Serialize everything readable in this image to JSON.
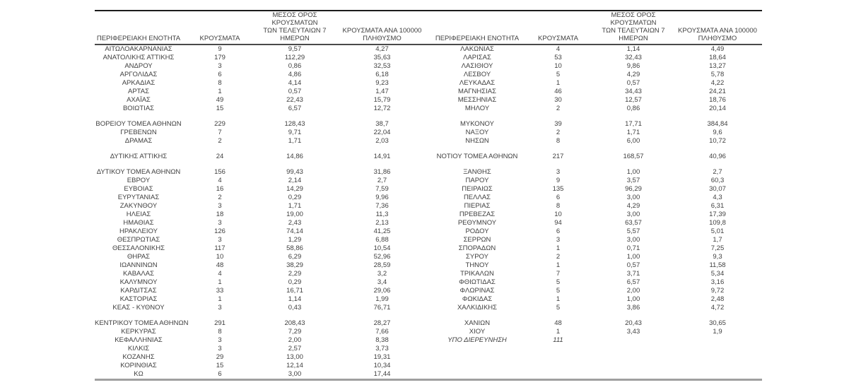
{
  "table": {
    "headers": {
      "region": "ΠΕΡΙΦΕΡΕΙΑΚΗ ΕΝΟΤΗΤΑ",
      "cases": "ΚΡΟΥΣΜΑΤΑ",
      "avg7": "ΜΕΣΟΣ ΟΡΟΣ ΚΡΟΥΣΜΑΤΩΝ\nΤΩΝ ΤΕΛΕΥΤΑΙΩΝ 7\nΗΜΕΡΩΝ",
      "per100k": "ΚΡΟΥΣΜΑΤΑ ΑΝΑ 100000\nΠΛΗΘΥΣΜΟ"
    },
    "colors": {
      "top_rule": "#1c1c1c",
      "header_rule": "#4a4a4a",
      "bottom_rule": "#a0a0a0",
      "text": "#3f3f3f"
    },
    "rows": [
      {
        "l": [
          "ΑΙΤΩΛΟΑΚΑΡΝΑΝΙΑΣ",
          "9",
          "9,57",
          "4,27"
        ],
        "r": [
          "ΛΑΚΩΝΙΑΣ",
          "4",
          "1,14",
          "4,49"
        ]
      },
      {
        "l": [
          "ΑΝΑΤΟΛΙΚΗΣ ΑΤΤΙΚΗΣ",
          "179",
          "112,29",
          "35,63"
        ],
        "r": [
          "ΛΑΡΙΣΑΣ",
          "53",
          "32,43",
          "18,64"
        ]
      },
      {
        "l": [
          "ΑΝΔΡΟΥ",
          "3",
          "0,86",
          "32,53"
        ],
        "r": [
          "ΛΑΣΙΘΙΟΥ",
          "10",
          "9,86",
          "13,27"
        ]
      },
      {
        "l": [
          "ΑΡΓΟΛΙΔΑΣ",
          "6",
          "4,86",
          "6,18"
        ],
        "r": [
          "ΛΕΣΒΟΥ",
          "5",
          "4,29",
          "5,78"
        ]
      },
      {
        "l": [
          "ΑΡΚΑΔΙΑΣ",
          "8",
          "4,14",
          "9,23"
        ],
        "r": [
          "ΛΕΥΚΑΔΑΣ",
          "1",
          "0,57",
          "4,22"
        ]
      },
      {
        "l": [
          "ΑΡΤΑΣ",
          "1",
          "0,57",
          "1,47"
        ],
        "r": [
          "ΜΑΓΝΗΣΙΑΣ",
          "46",
          "34,43",
          "24,21"
        ]
      },
      {
        "l": [
          "ΑΧΑΪΑΣ",
          "49",
          "22,43",
          "15,79"
        ],
        "r": [
          "ΜΕΣΣΗΝΙΑΣ",
          "30",
          "12,57",
          "18,76"
        ]
      },
      {
        "l": [
          "ΒΟΙΩΤΙΑΣ",
          "15",
          "6,57",
          "12,72"
        ],
        "r": [
          "ΜΗΛΟΥ",
          "2",
          "0,86",
          "20,14"
        ]
      },
      {
        "spacer": true
      },
      {
        "l": [
          "ΒΟΡΕΙΟΥ ΤΟΜΕΑ ΑΘΗΝΩΝ",
          "229",
          "128,43",
          "38,7"
        ],
        "r": [
          "ΜΥΚΟΝΟΥ",
          "39",
          "17,71",
          "384,84"
        ]
      },
      {
        "l": [
          "ΓΡΕΒΕΝΩΝ",
          "7",
          "9,71",
          "22,04"
        ],
        "r": [
          "ΝΑΞΟΥ",
          "2",
          "1,71",
          "9,6"
        ]
      },
      {
        "l": [
          "ΔΡΑΜΑΣ",
          "2",
          "1,71",
          "2,03"
        ],
        "r": [
          "ΝΗΣΩΝ",
          "8",
          "6,00",
          "10,72"
        ]
      },
      {
        "spacer": true
      },
      {
        "l": [
          "ΔΥΤΙΚΗΣ ΑΤΤΙΚΗΣ",
          "24",
          "14,86",
          "14,91"
        ],
        "r": [
          "ΝΟΤΙΟΥ ΤΟΜΕΑ ΑΘΗΝΩΝ",
          "217",
          "168,57",
          "40,96"
        ]
      },
      {
        "spacer": true
      },
      {
        "l": [
          "ΔΥΤΙΚΟΥ ΤΟΜΕΑ ΑΘΗΝΩΝ",
          "156",
          "99,43",
          "31,86"
        ],
        "r": [
          "ΞΑΝΘΗΣ",
          "3",
          "1,00",
          "2,7"
        ]
      },
      {
        "l": [
          "ΕΒΡΟΥ",
          "4",
          "2,14",
          "2,7"
        ],
        "r": [
          "ΠΑΡΟΥ",
          "9",
          "3,57",
          "60,3"
        ]
      },
      {
        "l": [
          "ΕΥΒΟΙΑΣ",
          "16",
          "14,29",
          "7,59"
        ],
        "r": [
          "ΠΕΙΡΑΙΩΣ",
          "135",
          "96,29",
          "30,07"
        ]
      },
      {
        "l": [
          "ΕΥΡΥΤΑΝΙΑΣ",
          "2",
          "0,29",
          "9,96"
        ],
        "r": [
          "ΠΕΛΛΑΣ",
          "6",
          "3,00",
          "4,3"
        ]
      },
      {
        "l": [
          "ΖΑΚΥΝΘΟΥ",
          "3",
          "1,71",
          "7,36"
        ],
        "r": [
          "ΠΙΕΡΙΑΣ",
          "8",
          "4,29",
          "6,31"
        ]
      },
      {
        "l": [
          "ΗΛΕΙΑΣ",
          "18",
          "19,00",
          "11,3"
        ],
        "r": [
          "ΠΡΕΒΕΖΑΣ",
          "10",
          "3,00",
          "17,39"
        ]
      },
      {
        "l": [
          "ΗΜΑΘΙΑΣ",
          "3",
          "2,43",
          "2,13"
        ],
        "r": [
          "ΡΕΘΥΜΝΟΥ",
          "94",
          "63,57",
          "109,8"
        ]
      },
      {
        "l": [
          "ΗΡΑΚΛΕΙΟΥ",
          "126",
          "74,14",
          "41,25"
        ],
        "r": [
          "ΡΟΔΟΥ",
          "6",
          "5,57",
          "5,01"
        ]
      },
      {
        "l": [
          "ΘΕΣΠΡΩΤΙΑΣ",
          "3",
          "1,29",
          "6,88"
        ],
        "r": [
          "ΣΕΡΡΩΝ",
          "3",
          "3,00",
          "1,7"
        ]
      },
      {
        "l": [
          "ΘΕΣΣΑΛΟΝΙΚΗΣ",
          "117",
          "58,86",
          "10,54"
        ],
        "r": [
          "ΣΠΟΡΑΔΩΝ",
          "1",
          "0,71",
          "7,25"
        ]
      },
      {
        "l": [
          "ΘΗΡΑΣ",
          "10",
          "6,29",
          "52,96"
        ],
        "r": [
          "ΣΥΡΟΥ",
          "2",
          "1,00",
          "9,3"
        ]
      },
      {
        "l": [
          "ΙΩΑΝΝΙΝΩΝ",
          "48",
          "38,29",
          "28,59"
        ],
        "r": [
          "ΤΗΝΟΥ",
          "1",
          "0,57",
          "11,58"
        ]
      },
      {
        "l": [
          "ΚΑΒΑΛΑΣ",
          "4",
          "2,29",
          "3,2"
        ],
        "r": [
          "ΤΡΙΚΑΛΩΝ",
          "7",
          "3,71",
          "5,34"
        ]
      },
      {
        "l": [
          "ΚΑΛΥΜΝΟΥ",
          "1",
          "0,29",
          "3,4"
        ],
        "r": [
          "ΦΘΙΩΤΙΔΑΣ",
          "5",
          "6,57",
          "3,16"
        ]
      },
      {
        "l": [
          "ΚΑΡΔΙΤΣΑΣ",
          "33",
          "16,71",
          "29,06"
        ],
        "r": [
          "ΦΛΩΡΙΝΑΣ",
          "5",
          "2,00",
          "9,72"
        ]
      },
      {
        "l": [
          "ΚΑΣΤΟΡΙΑΣ",
          "1",
          "1,14",
          "1,99"
        ],
        "r": [
          "ΦΩΚΙΔΑΣ",
          "1",
          "1,00",
          "2,48"
        ]
      },
      {
        "l": [
          "ΚΕΑΣ - ΚΥΘΝΟΥ",
          "3",
          "0,43",
          "76,71"
        ],
        "r": [
          "ΧΑΛΚΙΔΙΚΗΣ",
          "5",
          "3,86",
          "4,72"
        ]
      },
      {
        "spacer": true
      },
      {
        "l": [
          "ΚΕΝΤΡΙΚΟΥ ΤΟΜΕΑ ΑΘΗΝΩΝ",
          "291",
          "208,43",
          "28,27"
        ],
        "r": [
          "ΧΑΝΙΩΝ",
          "48",
          "20,43",
          "30,65"
        ]
      },
      {
        "l": [
          "ΚΕΡΚΥΡΑΣ",
          "8",
          "7,29",
          "7,66"
        ],
        "r": [
          "ΧΙΟΥ",
          "1",
          "3,43",
          "1,9"
        ]
      },
      {
        "l": [
          "ΚΕΦΑΛΛΗΝΙΑΣ",
          "3",
          "2,00",
          "8,38"
        ],
        "r": [
          "ΥΠΟ ΔΙΕΡΕΥΝΗΣΗ",
          "111",
          "",
          ""
        ],
        "r_italic": true
      },
      {
        "l": [
          "ΚΙΛΚΙΣ",
          "3",
          "2,57",
          "3,73"
        ],
        "r": [
          "",
          "",
          "",
          ""
        ]
      },
      {
        "l": [
          "ΚΟΖΑΝΗΣ",
          "29",
          "13,00",
          "19,31"
        ],
        "r": [
          "",
          "",
          "",
          ""
        ]
      },
      {
        "l": [
          "ΚΟΡΙΝΘΙΑΣ",
          "15",
          "12,14",
          "10,34"
        ],
        "r": [
          "",
          "",
          "",
          ""
        ]
      },
      {
        "l": [
          "ΚΩ",
          "6",
          "3,00",
          "17,44"
        ],
        "r": [
          "",
          "",
          "",
          ""
        ]
      }
    ]
  }
}
